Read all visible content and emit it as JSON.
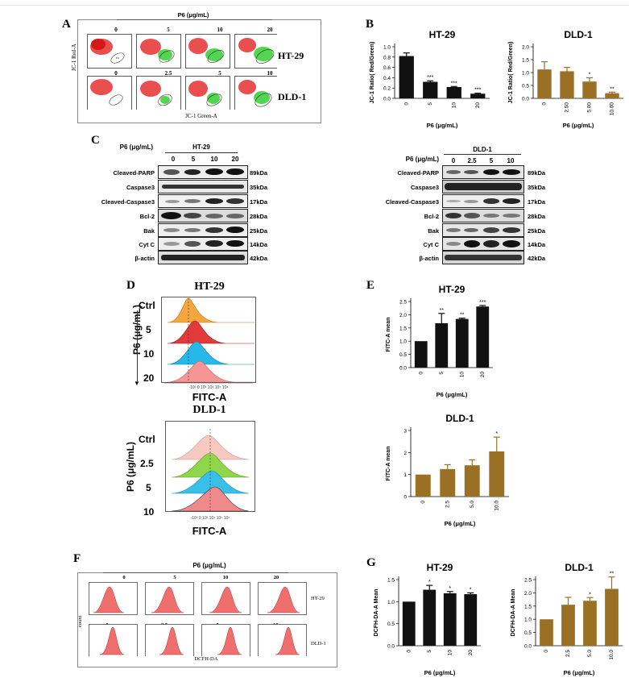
{
  "panelA": {
    "letter": "A",
    "header": "P6 (μg/mL)",
    "rows": [
      {
        "cell": "HT-29",
        "doses": [
          "0",
          "5",
          "10",
          "20"
        ]
      },
      {
        "cell": "DLD-1",
        "doses": [
          "0",
          "2.5",
          "5",
          "10"
        ]
      }
    ],
    "ylabel": "JC-1 Red-A",
    "xlabel": "JC-1 Green-A",
    "gate_label": "P3"
  },
  "panelB": {
    "letter": "B",
    "charts": [
      {
        "title": "HT-29",
        "ylabel": "JC-1 Ratio( Red/Green)",
        "xlabel": "P6 (μg/mL)",
        "categories": [
          "0",
          "5",
          "10",
          "20"
        ],
        "yticks": [
          "0.0",
          "0.2",
          "0.4",
          "0.6",
          "0.8",
          "1.0"
        ],
        "sig": [
          "",
          "***",
          "***",
          "***"
        ],
        "color": "#111111"
      },
      {
        "title": "DLD-1",
        "ylabel": "JC-1 Ratio( Red/Green)",
        "xlabel": "P6 (μg/mL)",
        "categories": [
          "0",
          "2.50",
          "5.00",
          "10.00"
        ],
        "yticks": [
          "0.0",
          "0.5",
          "1.0",
          "1.5",
          "2.0"
        ],
        "sig": [
          "",
          "",
          "*",
          "**"
        ],
        "color": "#9a7124"
      }
    ]
  },
  "panelC": {
    "letter": "C",
    "left": {
      "dose_label": "P6 (μg/mL)",
      "cell": "HT-29",
      "doses": [
        "0",
        "5",
        "10",
        "20"
      ]
    },
    "right": {
      "dose_label": "P6 (μg/mL)",
      "cell": "DLD-1",
      "doses": [
        "0",
        "2.5",
        "5",
        "10"
      ]
    },
    "proteins": [
      "Cleaved-PARP",
      "Caspase3",
      "Cleaved-Caspase3",
      "Bcl-2",
      "Bak",
      "Cyt C",
      "β-actin"
    ],
    "weights": [
      "89kDa",
      "35kDa",
      "17kDa",
      "28kDa",
      "25kDa",
      "14kDa",
      "42kDa"
    ]
  },
  "panelD": {
    "letter": "D",
    "ylabel": "P6 (μg/mL)",
    "xlabel": "FITC-A",
    "plots": [
      {
        "title": "HT-29",
        "labels": [
          "Ctrl",
          "5",
          "10",
          "20"
        ]
      },
      {
        "title": "DLD-1",
        "labels": [
          "Ctrl",
          "2.5",
          "5",
          "10"
        ]
      }
    ]
  },
  "panelE": {
    "letter": "E",
    "charts": [
      {
        "title": "HT-29",
        "ylabel": "FITC-A mean",
        "xlabel": "P6 (μg/mL)",
        "categories": [
          "0",
          "5",
          "10",
          "20"
        ],
        "yticks": [
          "0.0",
          "0.5",
          "1.0",
          "1.5",
          "2.0",
          "2.5"
        ],
        "sig": [
          "",
          "**",
          "**",
          "***"
        ],
        "color": "#111111"
      },
      {
        "title": "DLD-1",
        "ylabel": "FITC-A mean",
        "xlabel": "P6 (μg/mL)",
        "categories": [
          "0",
          "2.5",
          "5.0",
          "10.0"
        ],
        "yticks": [
          "0",
          "1",
          "2",
          "3"
        ],
        "sig": [
          "",
          "",
          "",
          "*"
        ],
        "color": "#9a7124"
      }
    ]
  },
  "panelF": {
    "letter": "F",
    "header": "P6 (μg/mL)",
    "ylabel": "count",
    "xlabel": "DCFH-DA",
    "rows": [
      {
        "cell": "HT-29",
        "doses": [
          "0",
          "5",
          "10",
          "20"
        ]
      },
      {
        "cell": "DLD-1",
        "doses": [
          "0",
          "2.5",
          "5",
          "10"
        ]
      }
    ]
  },
  "panelG": {
    "letter": "G",
    "charts": [
      {
        "title": "HT-29",
        "ylabel": "DCFH-DA-A Mean",
        "xlabel": "P6 (μg/mL)",
        "categories": [
          "0",
          "5",
          "10",
          "20"
        ],
        "yticks": [
          "0.0",
          "0.5",
          "1.0",
          "1.5"
        ],
        "sig": [
          "",
          "*",
          "*",
          "*"
        ],
        "color": "#111111"
      },
      {
        "title": "DLD-1",
        "ylabel": "DCFH-DA-A Mean",
        "xlabel": "P6 (μg/mL)",
        "categories": [
          "0",
          "2.5",
          "5.0",
          "10.0"
        ],
        "yticks": [
          "0.0",
          "0.5",
          "1.0",
          "1.5",
          "2.0",
          "2.5"
        ],
        "sig": [
          "",
          "",
          "*",
          "**"
        ],
        "color": "#9a7124"
      }
    ]
  },
  "chart_data": [
    {
      "type": "bar",
      "title": "HT-29",
      "categories": [
        "0",
        "5",
        "10",
        "20"
      ],
      "values": [
        0.82,
        0.32,
        0.22,
        0.09
      ],
      "errors": [
        0.06,
        0.02,
        0.01,
        0.01
      ],
      "ylabel": "JC-1 Ratio( Red/Green)",
      "xlabel": "P6 (μg/mL)",
      "ylim": [
        0,
        1.0
      ]
    },
    {
      "type": "bar",
      "title": "DLD-1",
      "categories": [
        "0",
        "2.50",
        "5.00",
        "10.00"
      ],
      "values": [
        1.12,
        1.05,
        0.65,
        0.2
      ],
      "errors": [
        0.3,
        0.15,
        0.15,
        0.04
      ],
      "ylabel": "JC-1 Ratio( Red/Green)",
      "xlabel": "P6 (μg/mL)",
      "ylim": [
        0,
        2.0
      ]
    },
    {
      "type": "bar",
      "title": "HT-29",
      "categories": [
        "0",
        "5",
        "10",
        "20"
      ],
      "values": [
        1.0,
        1.68,
        1.84,
        2.31
      ],
      "errors": [
        0.0,
        0.37,
        0.03,
        0.04
      ],
      "ylabel": "FITC-A mean",
      "xlabel": "P6 (μg/mL)",
      "ylim": [
        0,
        2.5
      ]
    },
    {
      "type": "bar",
      "title": "DLD-1",
      "categories": [
        "0",
        "2.5",
        "5.0",
        "10.0"
      ],
      "values": [
        1.0,
        1.25,
        1.42,
        2.05
      ],
      "errors": [
        0.0,
        0.2,
        0.25,
        0.65
      ],
      "ylabel": "FITC-A mean",
      "xlabel": "P6 (μg/mL)",
      "ylim": [
        0,
        3
      ]
    },
    {
      "type": "bar",
      "title": "HT-29",
      "categories": [
        "0",
        "5",
        "10",
        "20"
      ],
      "values": [
        1.0,
        1.27,
        1.19,
        1.17
      ],
      "errors": [
        0.0,
        0.1,
        0.04,
        0.03
      ],
      "ylabel": "DCFH-DA-A Mean",
      "xlabel": "P6 (μg/mL)",
      "ylim": [
        0,
        1.5
      ]
    },
    {
      "type": "bar",
      "title": "DLD-1",
      "categories": [
        "0",
        "2.5",
        "5.0",
        "10.0"
      ],
      "values": [
        1.0,
        1.55,
        1.7,
        2.15
      ],
      "errors": [
        0.0,
        0.28,
        0.12,
        0.45
      ],
      "ylabel": "DCFH-DA-A Mean",
      "xlabel": "P6 (μg/mL)",
      "ylim": [
        0,
        2.5
      ]
    }
  ]
}
